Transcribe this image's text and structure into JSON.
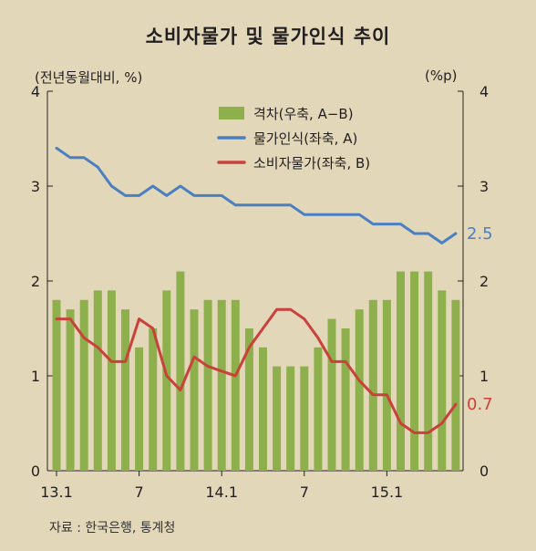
{
  "title": "소비자물가 및 물가인식 추이",
  "left_unit": "(전년동월대비, %)",
  "right_unit": "(%p)",
  "source": "자료 : 한국은행, 통계청",
  "colors": {
    "bar": "#8db04c",
    "perception": "#4a7fc1",
    "cpi": "#c9413b",
    "text": "#231f20"
  },
  "chart_data": {
    "type": "bar+line",
    "categories": [
      "13.1",
      "13.2",
      "13.3",
      "13.4",
      "13.5",
      "13.6",
      "13.7",
      "13.8",
      "13.9",
      "13.10",
      "13.11",
      "13.12",
      "14.1",
      "14.2",
      "14.3",
      "14.4",
      "14.5",
      "14.6",
      "14.7",
      "14.8",
      "14.9",
      "14.10",
      "14.11",
      "14.12",
      "15.1",
      "15.2",
      "15.3",
      "15.4",
      "15.5",
      "15.6"
    ],
    "x_tick_labels": [
      {
        "index": 0,
        "label": "13.1"
      },
      {
        "index": 6,
        "label": "7"
      },
      {
        "index": 12,
        "label": "14.1"
      },
      {
        "index": 18,
        "label": "7"
      },
      {
        "index": 24,
        "label": "15.1"
      }
    ],
    "y_left": {
      "ylim": [
        0,
        4
      ],
      "ticks": [
        "0",
        "1",
        "2",
        "3",
        "4"
      ]
    },
    "y_right": {
      "ylim": [
        0,
        4
      ],
      "ticks": [
        "0",
        "1",
        "2",
        "3",
        "4"
      ]
    },
    "series": [
      {
        "name": "격차(우축, A−B)",
        "type": "bar",
        "axis": "right",
        "color_key": "bar",
        "values": [
          1.8,
          1.7,
          1.8,
          1.9,
          1.9,
          1.7,
          1.3,
          1.5,
          1.9,
          2.1,
          1.7,
          1.8,
          1.8,
          1.8,
          1.5,
          1.3,
          1.1,
          1.1,
          1.1,
          1.3,
          1.6,
          1.5,
          1.7,
          1.8,
          1.8,
          2.1,
          2.1,
          2.1,
          1.9,
          1.8
        ]
      },
      {
        "name": "물가인식(좌축, A)",
        "type": "line",
        "axis": "left",
        "color_key": "perception",
        "values": [
          3.4,
          3.3,
          3.3,
          3.2,
          3.0,
          2.9,
          2.9,
          3.0,
          2.9,
          3.0,
          2.9,
          2.9,
          2.9,
          2.8,
          2.8,
          2.8,
          2.8,
          2.8,
          2.7,
          2.7,
          2.7,
          2.7,
          2.7,
          2.6,
          2.6,
          2.6,
          2.5,
          2.5,
          2.4,
          2.5
        ],
        "end_label": "2.5"
      },
      {
        "name": "소비자물가(좌축, B)",
        "type": "line",
        "axis": "left",
        "color_key": "cpi",
        "values": [
          1.6,
          1.6,
          1.4,
          1.3,
          1.15,
          1.15,
          1.6,
          1.5,
          1.0,
          0.85,
          1.2,
          1.1,
          1.05,
          1.0,
          1.3,
          1.5,
          1.7,
          1.7,
          1.6,
          1.4,
          1.15,
          1.15,
          0.95,
          0.8,
          0.8,
          0.5,
          0.4,
          0.4,
          0.5,
          0.7
        ],
        "end_label": "0.7"
      }
    ],
    "legend_position": "top-center",
    "grid": false
  }
}
